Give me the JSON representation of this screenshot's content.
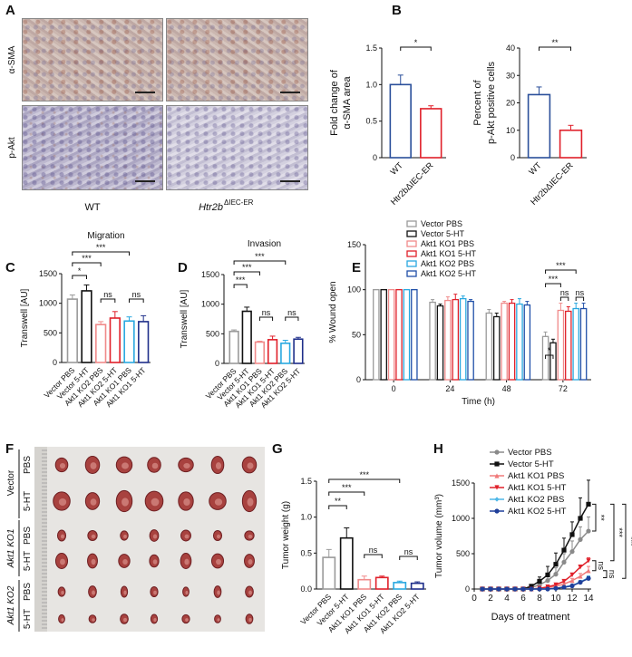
{
  "panel_labels": [
    "A",
    "B",
    "C",
    "D",
    "E",
    "F",
    "G",
    "H"
  ],
  "panel_a": {
    "rows": [
      "α-SMA",
      "p-Akt"
    ],
    "columns": [
      "WT",
      "Htr2b"
    ],
    "column_superscript": "ΔIEC-ER"
  },
  "panel_f": {
    "groups": [
      "Vector",
      "Akt1 KO1",
      "Akt1 KO2"
    ],
    "treatments": [
      "PBS",
      "5-HT",
      "PBS",
      "5-HT",
      "PBS",
      "5-HT"
    ]
  },
  "chart_data": [
    {
      "type": "bar",
      "panel": "B",
      "title": "",
      "ylabel": [
        "Fold change of",
        "α-SMA area"
      ],
      "categories": [
        "WT",
        "Htr2bΔIEC-ER"
      ],
      "values": [
        1.0,
        0.67
      ],
      "errors": [
        0.13,
        0.04
      ],
      "colors": [
        "#2a4f9a",
        "#e0202a"
      ],
      "ylim": [
        0,
        1.5
      ],
      "yticks": [
        "0",
        "0.5",
        "1.0",
        "1.5"
      ],
      "significance": [
        {
          "from": 0,
          "to": 1,
          "label": "*"
        }
      ]
    },
    {
      "type": "bar",
      "panel": "B",
      "title": "",
      "ylabel": [
        "Percent of",
        "p-Akt positive cells"
      ],
      "categories": [
        "WT",
        "Htr2bΔIEC-ER"
      ],
      "values": [
        23,
        10
      ],
      "errors": [
        2.8,
        1.8
      ],
      "colors": [
        "#2a4f9a",
        "#e0202a"
      ],
      "ylim": [
        0,
        40
      ],
      "yticks": [
        "0",
        "10",
        "20",
        "30",
        "40"
      ],
      "significance": [
        {
          "from": 0,
          "to": 1,
          "label": "**"
        }
      ]
    },
    {
      "type": "bar",
      "panel": "C",
      "title": "Migration",
      "ylabel": [
        "Transwell [AU]"
      ],
      "categories": [
        "Vector PBS",
        "Vector 5-HT",
        "Akt1 KO2 PBS",
        "Akt1 KO2 5-HT",
        "Akt1 KO1 PBS",
        "Akt1 KO1 5-HT"
      ],
      "values": [
        1070,
        1210,
        640,
        750,
        700,
        690
      ],
      "errors": [
        70,
        100,
        50,
        110,
        70,
        100
      ],
      "colors": [
        "#9a9a9a",
        "#111111",
        "#f08a8a",
        "#e0202a",
        "#29a8e0",
        "#1f2f8a"
      ],
      "ylim": [
        0,
        1500
      ],
      "yticks": [
        "0",
        "500",
        "1000",
        "1500"
      ],
      "significance": [
        {
          "from": 0,
          "to": 1,
          "label": "*"
        },
        {
          "from": 0,
          "to": 2,
          "label": "***"
        },
        {
          "from": 0,
          "to": 4,
          "label": "***"
        },
        {
          "from": 2,
          "to": 3,
          "label": "ns"
        },
        {
          "from": 4,
          "to": 5,
          "label": "ns"
        }
      ]
    },
    {
      "type": "bar",
      "panel": "D",
      "title": "Invasion",
      "ylabel": [
        "Transwell [AU]"
      ],
      "categories": [
        "Vector PBS",
        "Vector 5-HT",
        "Akt1 KO1 PBS",
        "Akt1 KO1 5-HT",
        "Akt1 KO2 PBS",
        "Akt1 KO2 5-HT"
      ],
      "values": [
        540,
        880,
        360,
        400,
        340,
        410
      ],
      "errors": [
        25,
        70,
        15,
        60,
        50,
        30
      ],
      "colors": [
        "#9a9a9a",
        "#111111",
        "#f08a8a",
        "#e0202a",
        "#29a8e0",
        "#1f2f8a"
      ],
      "ylim": [
        0,
        1500
      ],
      "yticks": [
        "0",
        "500",
        "1000",
        "1500"
      ],
      "significance": [
        {
          "from": 0,
          "to": 1,
          "label": "***"
        },
        {
          "from": 0,
          "to": 2,
          "label": "***"
        },
        {
          "from": 0,
          "to": 4,
          "label": "***"
        },
        {
          "from": 2,
          "to": 3,
          "label": "ns"
        },
        {
          "from": 4,
          "to": 5,
          "label": "ns"
        }
      ]
    },
    {
      "type": "bar",
      "panel": "E",
      "title": "",
      "ylabel": [
        "% Wound open"
      ],
      "xlabel": "Time (h)",
      "x": [
        "0",
        "24",
        "48",
        "72"
      ],
      "ylim": [
        0,
        150
      ],
      "yticks": [
        "0",
        "50",
        "100",
        "150"
      ],
      "legend": "top",
      "series": [
        {
          "name": "Vector PBS",
          "color": "#9a9a9a",
          "values": [
            100,
            86,
            74,
            48
          ],
          "errors": [
            0,
            3,
            4,
            5
          ]
        },
        {
          "name": "Vector 5-HT",
          "color": "#111111",
          "values": [
            100,
            82,
            70,
            41
          ],
          "errors": [
            0,
            2,
            4,
            4
          ]
        },
        {
          "name": "Akt1 KO1 PBS",
          "color": "#f08a8a",
          "values": [
            100,
            88,
            85,
            77
          ],
          "errors": [
            0,
            4,
            2,
            8
          ]
        },
        {
          "name": "Akt1 KO1 5-HT",
          "color": "#e0202a",
          "values": [
            100,
            89,
            85,
            76
          ],
          "errors": [
            0,
            6,
            4,
            5
          ]
        },
        {
          "name": "Akt1 KO2 PBS",
          "color": "#29a8e0",
          "values": [
            100,
            90,
            84,
            79
          ],
          "errors": [
            0,
            3,
            6,
            6
          ]
        },
        {
          "name": "Akt1 KO2 5-HT",
          "color": "#1f4fa8",
          "values": [
            100,
            87,
            83,
            79
          ],
          "errors": [
            0,
            2,
            4,
            6
          ]
        }
      ],
      "significance": [
        {
          "group": 3,
          "from": 0,
          "to": 1,
          "label": "*"
        },
        {
          "group": 3,
          "from": 0,
          "to": 2,
          "label": "***"
        },
        {
          "group": 3,
          "from": 0,
          "to": 4,
          "label": "***"
        },
        {
          "group": 3,
          "from": 2,
          "to": 3,
          "label": "ns"
        },
        {
          "group": 3,
          "from": 4,
          "to": 5,
          "label": "ns"
        }
      ]
    },
    {
      "type": "bar",
      "panel": "G",
      "title": "",
      "ylabel": [
        "Tumor weight (g)"
      ],
      "categories": [
        "Vector PBS",
        "Vector 5-HT",
        "Akt1 KO1 PBS",
        "Akt1 KO1 5-HT",
        "Akt1 KO2 PBS",
        "Akt1 KO2 5-HT"
      ],
      "values": [
        0.44,
        0.71,
        0.13,
        0.16,
        0.09,
        0.08
      ],
      "errors": [
        0.11,
        0.14,
        0.05,
        0.02,
        0.02,
        0.02
      ],
      "colors": [
        "#9a9a9a",
        "#111111",
        "#f08a8a",
        "#e0202a",
        "#29a8e0",
        "#1f2f8a"
      ],
      "ylim": [
        0,
        1.5
      ],
      "yticks": [
        "0.0",
        "0.5",
        "1.0",
        "1.5"
      ],
      "significance": [
        {
          "from": 0,
          "to": 1,
          "label": "**"
        },
        {
          "from": 0,
          "to": 2,
          "label": "***"
        },
        {
          "from": 0,
          "to": 4,
          "label": "***"
        },
        {
          "from": 2,
          "to": 3,
          "label": "ns"
        },
        {
          "from": 4,
          "to": 5,
          "label": "ns"
        }
      ]
    },
    {
      "type": "line",
      "panel": "H",
      "title": "",
      "ylabel": [
        "Tumor volume (mm³)"
      ],
      "xlabel": "Days of treatment",
      "x": [
        1,
        2,
        3,
        4,
        5,
        6,
        7,
        8,
        9,
        10,
        11,
        12,
        13,
        14
      ],
      "xlim": [
        0,
        14
      ],
      "xticks": [
        "0",
        "2",
        "4",
        "6",
        "8",
        "10",
        "12",
        "14"
      ],
      "ylim": [
        0,
        1500
      ],
      "yticks": [
        "0",
        "500",
        "1000",
        "1500"
      ],
      "legend": "top-left",
      "series": [
        {
          "name": "Vector  PBS",
          "color": "#8a8a8a",
          "marker": "circle",
          "values": [
            0,
            0,
            0,
            0,
            0,
            0,
            20,
            60,
            120,
            210,
            380,
            530,
            700,
            820
          ],
          "errors": [
            0,
            0,
            0,
            0,
            0,
            0,
            10,
            30,
            60,
            90,
            120,
            150,
            180,
            200
          ]
        },
        {
          "name": "Vector  5-HT",
          "color": "#111111",
          "marker": "square",
          "values": [
            0,
            0,
            0,
            0,
            0,
            0,
            40,
            110,
            200,
            350,
            550,
            770,
            1000,
            1200
          ],
          "errors": [
            0,
            0,
            0,
            0,
            0,
            0,
            20,
            60,
            120,
            160,
            170,
            180,
            290,
            340
          ]
        },
        {
          "name": "Akt1 KO1 PBS",
          "color": "#f07a7a",
          "marker": "triangle",
          "values": [
            0,
            0,
            0,
            0,
            0,
            0,
            0,
            10,
            20,
            40,
            70,
            120,
            180,
            260
          ],
          "errors": [
            0,
            0,
            0,
            0,
            0,
            0,
            0,
            5,
            10,
            15,
            20,
            30,
            40,
            60
          ]
        },
        {
          "name": "Akt1 KO1 5-HT",
          "color": "#e0202a",
          "marker": "triangle-down",
          "values": [
            0,
            0,
            0,
            0,
            0,
            0,
            0,
            10,
            30,
            60,
            110,
            200,
            310,
            400
          ],
          "errors": [
            0,
            0,
            0,
            0,
            0,
            0,
            0,
            5,
            10,
            15,
            20,
            25,
            30,
            40
          ]
        },
        {
          "name": "Akt1 KO2 PBS",
          "color": "#4fb8e8",
          "marker": "diamond",
          "values": [
            0,
            0,
            0,
            0,
            0,
            0,
            0,
            0,
            0,
            10,
            30,
            50,
            100,
            160
          ],
          "errors": [
            0,
            0,
            0,
            0,
            0,
            0,
            0,
            0,
            0,
            5,
            10,
            15,
            20,
            25
          ]
        },
        {
          "name": "Akt1 KO2 5-HT",
          "color": "#1f3f9a",
          "marker": "circle",
          "values": [
            0,
            0,
            0,
            0,
            0,
            0,
            0,
            0,
            0,
            10,
            25,
            45,
            95,
            150
          ],
          "errors": [
            0,
            0,
            0,
            0,
            0,
            0,
            0,
            0,
            0,
            5,
            10,
            15,
            20,
            25
          ]
        }
      ],
      "significance": [
        {
          "from": 1,
          "to": 0,
          "label": "**"
        },
        {
          "from": 1,
          "to": 3,
          "label": "***"
        },
        {
          "from": 1,
          "to": 5,
          "label": "***"
        },
        {
          "from": 3,
          "to": 2,
          "label": "ns"
        },
        {
          "from": 2,
          "to": 4,
          "label": "ns"
        }
      ]
    }
  ]
}
